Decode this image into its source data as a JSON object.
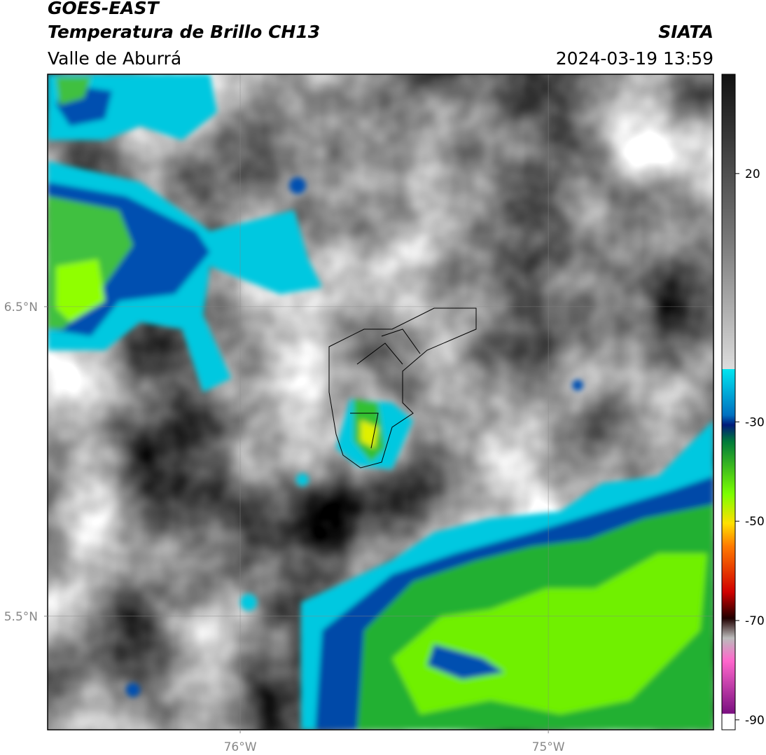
{
  "header": {
    "title": "GOES-EAST",
    "subtitle": "Temperatura de Brillo CH13",
    "region": "Valle de Aburrá",
    "source": "SIATA",
    "datetime": "2024-03-19 13:59"
  },
  "map": {
    "xlim": [
      -76.625,
      -74.464
    ],
    "ylim": [
      5.133,
      7.251
    ],
    "xticks": [
      {
        "value": -76,
        "label": "76°W"
      },
      {
        "value": -75,
        "label": "75°W"
      }
    ],
    "yticks": [
      {
        "value": 6.5,
        "label": "6.5°N"
      },
      {
        "value": 5.5,
        "label": "5.5°N"
      }
    ]
  },
  "colorbar": {
    "lim": [
      -92,
      40
    ],
    "ticks": [
      20,
      -30,
      -50,
      -70,
      -90
    ]
  }
}
